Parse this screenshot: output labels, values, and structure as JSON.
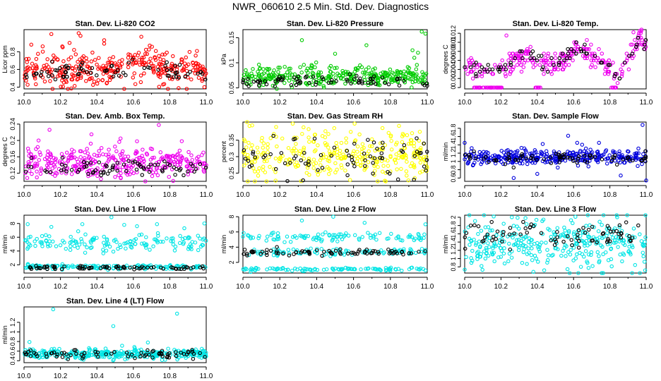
{
  "title": "NWR_060610  2.5 Min. Std. Dev. Diagnostics",
  "chart_data": [
    {
      "type": "scatter",
      "title": "Stan. Dev. Li-820 CO2",
      "ylabel": "Licor ppm",
      "color": "#ff0000",
      "xlim": [
        10.0,
        11.0
      ],
      "ylim": [
        0.38,
        1.05
      ],
      "xticks": [
        10.0,
        10.2,
        10.4,
        10.6,
        10.8,
        11.0
      ],
      "yticks": [
        0.4,
        0.6,
        0.8
      ],
      "bands": [
        {
          "start": 10.0,
          "end": 11.0,
          "mean": 0.6,
          "spread": 0.09
        }
      ],
      "black_mean": 0.55,
      "black_spread": 0.05,
      "hump": {
        "center": 10.65,
        "width": 0.1,
        "amp": 0.12
      },
      "outliers": [
        [
          10.15,
          1.0
        ],
        [
          10.3,
          1.01
        ],
        [
          10.31,
          0.98
        ],
        [
          10.44,
          0.93
        ],
        [
          10.25,
          0.9
        ],
        [
          10.21,
          0.86
        ],
        [
          10.69,
          0.87
        ],
        [
          10.79,
          0.38
        ],
        [
          10.55,
          0.37
        ],
        [
          10.99,
          0.4
        ],
        [
          10.04,
          0.88
        ]
      ]
    },
    {
      "type": "scatter",
      "title": "Stan. Dev. Li-820 Pressure",
      "ylabel": "kPa",
      "color": "#00cc00",
      "xlim": [
        10.0,
        11.0
      ],
      "ylim": [
        0.048,
        0.166
      ],
      "xticks": [
        10.0,
        10.2,
        10.4,
        10.6,
        10.8,
        11.0
      ],
      "yticks": [
        0.05,
        0.1,
        0.15
      ],
      "bands": [
        {
          "start": 10.0,
          "end": 11.0,
          "mean": 0.072,
          "spread": 0.01
        }
      ],
      "black_mean": 0.064,
      "black_spread": 0.006,
      "outliers": [
        [
          10.32,
          0.145
        ],
        [
          10.67,
          0.135
        ],
        [
          10.97,
          0.162
        ],
        [
          10.99,
          0.158
        ],
        [
          10.92,
          0.125
        ],
        [
          10.93,
          0.11
        ],
        [
          10.95,
          0.12
        ],
        [
          10.5,
          0.118
        ]
      ]
    },
    {
      "type": "scatter",
      "title": "Stan. Dev. Li-820 Temp.",
      "ylabel": "degrees C",
      "color": "#ee00ee",
      "xlim": [
        10.0,
        11.0
      ],
      "ylim": [
        -0.0003,
        0.0128
      ],
      "xticks": [
        10.0,
        10.2,
        10.4,
        10.6,
        10.8,
        11.0
      ],
      "yticks": [
        0.0,
        0.002,
        0.004,
        0.006,
        0.008,
        0.01,
        0.012
      ],
      "trend": [
        [
          10.0,
          0.004
        ],
        [
          10.15,
          0.004
        ],
        [
          10.25,
          0.005
        ],
        [
          10.35,
          0.008
        ],
        [
          10.45,
          0.005
        ],
        [
          10.55,
          0.006
        ],
        [
          10.62,
          0.009
        ],
        [
          10.72,
          0.007
        ],
        [
          10.8,
          0.004
        ],
        [
          10.85,
          0.002
        ],
        [
          10.9,
          0.007
        ],
        [
          10.97,
          0.011
        ],
        [
          11.0,
          0.009
        ]
      ],
      "spread": 0.0012,
      "black_offset": 0.0,
      "black_spread": 0.0008,
      "quantize": 0.0005,
      "floor": {
        "y": 0.0,
        "ranges": [
          [
            10.05,
            10.22
          ],
          [
            10.38,
            10.42
          ],
          [
            10.8,
            10.84
          ]
        ]
      },
      "outliers": [
        [
          10.23,
          0.0115
        ],
        [
          10.93,
          0.0122
        ]
      ]
    },
    {
      "type": "scatter",
      "title": "Stan. Dev. Amb. Box Temp.",
      "ylabel": "degrees C",
      "color": "#ee00ee",
      "xlim": [
        10.0,
        11.0
      ],
      "ylim": [
        0.1,
        0.245
      ],
      "xticks": [
        10.0,
        10.2,
        10.4,
        10.6,
        10.8,
        11.0
      ],
      "yticks": [
        0.12,
        0.16,
        0.2,
        0.24
      ],
      "bands": [
        {
          "start": 10.0,
          "end": 11.0,
          "mean": 0.147,
          "spread": 0.018
        }
      ],
      "black_mean": 0.132,
      "black_spread": 0.01,
      "outliers": [
        [
          10.14,
          0.226
        ],
        [
          10.74,
          0.238
        ],
        [
          10.37,
          0.215
        ],
        [
          10.53,
          0.205
        ],
        [
          10.08,
          0.2
        ],
        [
          10.62,
          0.198
        ]
      ]
    },
    {
      "type": "scatter",
      "title": "Stan. Dev. Gas Stream RH",
      "ylabel": "percent",
      "color": "#ffff00",
      "xlim": [
        10.0,
        11.0
      ],
      "ylim": [
        0.225,
        0.405
      ],
      "xticks": [
        10.0,
        10.2,
        10.4,
        10.6,
        10.8,
        11.0
      ],
      "yticks": [
        0.25,
        0.3,
        0.35
      ],
      "bands": [
        {
          "start": 10.0,
          "end": 11.0,
          "mean": 0.305,
          "spread": 0.035
        }
      ],
      "black_mean": 0.305,
      "black_spread": 0.03,
      "outliers": [
        [
          10.05,
          0.395
        ],
        [
          10.18,
          0.39
        ],
        [
          10.27,
          0.4
        ]
      ]
    },
    {
      "type": "scatter",
      "title": "Stan. Dev. Sample Flow",
      "ylabel": "ml/min",
      "color": "#0000dd",
      "xlim": [
        10.0,
        11.0
      ],
      "ylim": [
        0.52,
        1.95
      ],
      "xticks": [
        10.0,
        10.2,
        10.4,
        10.6,
        10.8,
        11.0
      ],
      "yticks": [
        0.6,
        0.8,
        1.0,
        1.2,
        1.4,
        1.6,
        1.8
      ],
      "bands": [
        {
          "start": 10.0,
          "end": 11.0,
          "mean": 1.1,
          "spread": 0.09
        }
      ],
      "black_mean": 1.08,
      "black_spread": 0.07,
      "outliers": [
        [
          10.98,
          1.88
        ],
        [
          10.57,
          1.62
        ],
        [
          10.0,
          1.45
        ],
        [
          10.43,
          1.42
        ],
        [
          10.62,
          1.45
        ],
        [
          10.4,
          0.7
        ],
        [
          10.27,
          0.6
        ],
        [
          11.0,
          0.54
        ],
        [
          10.86,
          0.66
        ],
        [
          10.74,
          1.45
        ]
      ]
    },
    {
      "type": "scatter",
      "title": "Stan. Dev. Line 1 Flow",
      "ylabel": "ml/min",
      "color": "#00e5e5",
      "xlim": [
        10.0,
        11.0
      ],
      "ylim": [
        0.8,
        9.2
      ],
      "xticks": [
        10.0,
        10.2,
        10.4,
        10.6,
        10.8,
        11.0
      ],
      "yticks": [
        2,
        4,
        6,
        8
      ],
      "bands": [
        {
          "start": 10.0,
          "end": 11.0,
          "mean": 5.2,
          "spread": 0.6
        },
        {
          "start": 10.0,
          "end": 11.0,
          "mean": 1.7,
          "spread": 0.18
        }
      ],
      "black_mean": 1.6,
      "black_spread": 0.12,
      "outliers": [
        [
          10.02,
          7.9
        ],
        [
          10.15,
          7.5
        ],
        [
          10.32,
          7.9
        ],
        [
          10.55,
          7.8
        ],
        [
          10.62,
          7.6
        ],
        [
          10.73,
          7.9
        ],
        [
          10.88,
          7.3
        ],
        [
          10.99,
          8.0
        ],
        [
          10.48,
          8.9
        ]
      ]
    },
    {
      "type": "scatter",
      "title": "Stan. Dev. Line 2 Flow",
      "ylabel": "ml/min",
      "color": "#00e5e5",
      "xlim": [
        10.0,
        11.0
      ],
      "ylim": [
        0.6,
        8.2
      ],
      "xticks": [
        10.0,
        10.2,
        10.4,
        10.6,
        10.8,
        11.0
      ],
      "yticks": [
        2,
        4,
        6,
        8
      ],
      "bands": [
        {
          "start": 10.0,
          "end": 11.0,
          "mean": 5.3,
          "spread": 0.3
        },
        {
          "start": 10.0,
          "end": 11.0,
          "mean": 3.3,
          "spread": 0.25
        },
        {
          "start": 10.0,
          "end": 11.0,
          "mean": 1.1,
          "spread": 0.12
        }
      ],
      "black_mean": 3.3,
      "black_spread": 0.2,
      "outliers": [
        [
          10.32,
          7.5
        ],
        [
          10.49,
          8.0
        ],
        [
          10.66,
          7.2
        ],
        [
          10.99,
          7.0
        ]
      ]
    },
    {
      "type": "scatter",
      "title": "Stan. Dev. Line 3 Flow",
      "ylabel": "ml/min",
      "color": "#00e5e5",
      "xlim": [
        10.0,
        11.0
      ],
      "ylim": [
        0.65,
        2.05
      ],
      "xticks": [
        10.0,
        10.2,
        10.4,
        10.6,
        10.8,
        11.0
      ],
      "yticks": [
        0.8,
        1.0,
        1.2,
        1.4,
        1.6,
        1.8,
        2.0
      ],
      "bands": [
        {
          "start": 10.0,
          "end": 11.0,
          "mean": 1.35,
          "spread": 0.3
        }
      ],
      "black_mean": 1.55,
      "black_spread": 0.15,
      "outliers": [
        [
          10.16,
          2.02
        ],
        [
          10.26,
          2.0
        ],
        [
          10.61,
          2.01
        ],
        [
          10.84,
          2.0
        ]
      ]
    },
    {
      "type": "scatter",
      "title": "Stan. Dev. Line 4 (LT) Flow",
      "ylabel": "ml/min",
      "color": "#00e5e5",
      "xlim": [
        10.0,
        11.0
      ],
      "ylim": [
        0.36,
        1.52
      ],
      "xticks": [
        10.0,
        10.2,
        10.4,
        10.6,
        10.8,
        11.0
      ],
      "yticks": [
        0.4,
        0.6,
        0.8,
        1.0,
        1.2
      ],
      "bands": [
        {
          "start": 10.0,
          "end": 11.0,
          "mean": 0.55,
          "spread": 0.05
        }
      ],
      "black_mean": 0.55,
      "black_spread": 0.045,
      "outliers": [
        [
          10.16,
          1.47
        ],
        [
          10.84,
          1.38
        ],
        [
          10.49,
          1.12
        ],
        [
          10.03,
          0.79
        ],
        [
          10.68,
          0.78
        ]
      ]
    }
  ]
}
